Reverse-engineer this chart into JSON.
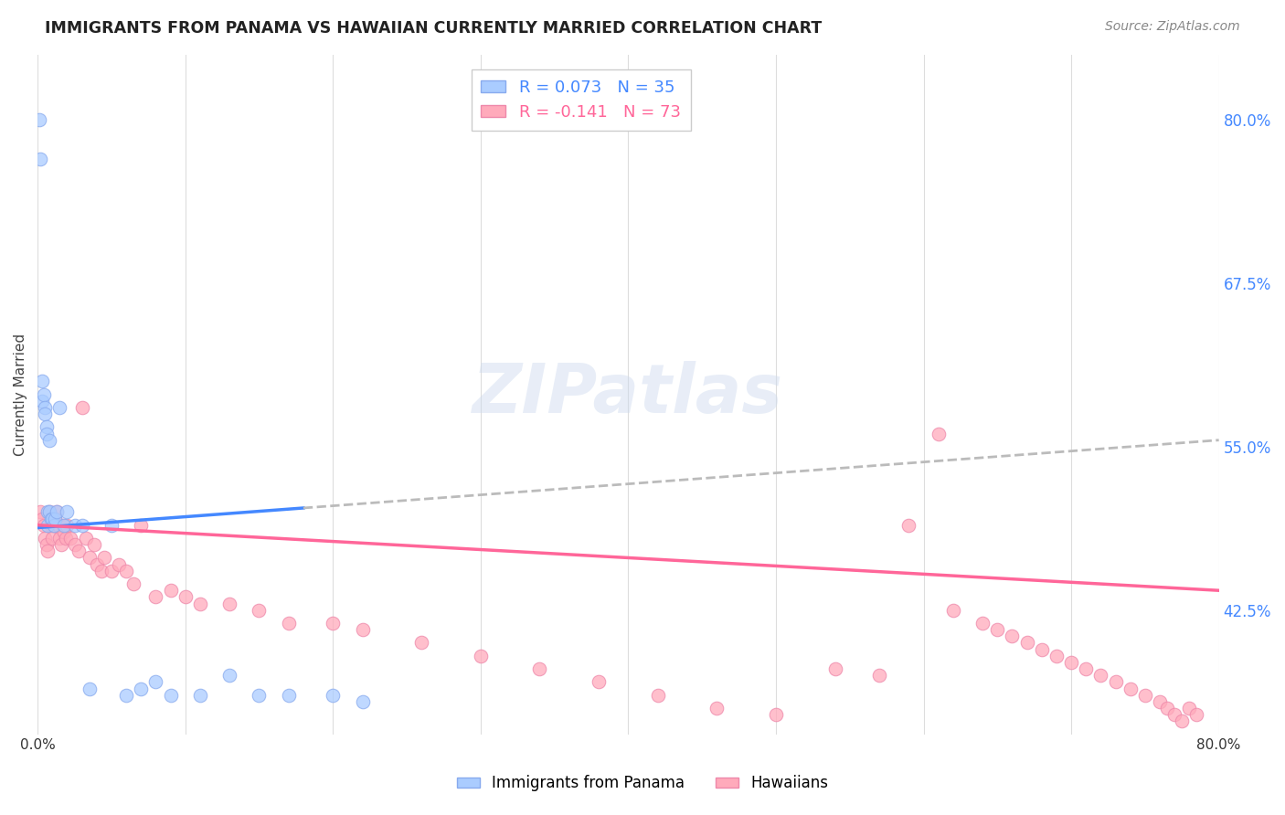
{
  "title": "IMMIGRANTS FROM PANAMA VS HAWAIIAN CURRENTLY MARRIED CORRELATION CHART",
  "source": "Source: ZipAtlas.com",
  "ylabel": "Currently Married",
  "watermark": "ZIPatlas",
  "right_ytick_labels": [
    "80.0%",
    "67.5%",
    "55.0%",
    "42.5%"
  ],
  "right_ytick_values": [
    0.8,
    0.675,
    0.55,
    0.425
  ],
  "series1_color": "#aaccff",
  "series2_color": "#ffaabb",
  "series1_edge_color": "#88aaee",
  "series2_edge_color": "#ee88aa",
  "trendline1_color": "#4488ff",
  "trendline2_color": "#ff6699",
  "dashed_line_color": "#bbbbbb",
  "legend1_label": "R = 0.073   N = 35",
  "legend2_label": "R = -0.141   N = 73",
  "legend1_text_color": "#4488ff",
  "legend2_text_color": "#ff6699",
  "bottom_legend1_label": "Immigrants from Panama",
  "bottom_legend2_label": "Hawaiians",
  "xmin": 0.0,
  "xmax": 0.8,
  "ymin": 0.33,
  "ymax": 0.85,
  "panama_x": [
    0.001,
    0.002,
    0.003,
    0.003,
    0.004,
    0.005,
    0.005,
    0.006,
    0.006,
    0.007,
    0.007,
    0.008,
    0.008,
    0.009,
    0.01,
    0.011,
    0.012,
    0.013,
    0.015,
    0.018,
    0.02,
    0.025,
    0.03,
    0.035,
    0.05,
    0.06,
    0.07,
    0.08,
    0.09,
    0.11,
    0.13,
    0.15,
    0.17,
    0.2,
    0.22
  ],
  "panama_y": [
    0.8,
    0.77,
    0.6,
    0.585,
    0.59,
    0.58,
    0.575,
    0.565,
    0.56,
    0.5,
    0.49,
    0.555,
    0.5,
    0.495,
    0.495,
    0.49,
    0.495,
    0.5,
    0.58,
    0.49,
    0.5,
    0.49,
    0.49,
    0.365,
    0.49,
    0.36,
    0.365,
    0.37,
    0.36,
    0.36,
    0.375,
    0.36,
    0.36,
    0.36,
    0.355
  ],
  "hawaii_x": [
    0.002,
    0.003,
    0.004,
    0.005,
    0.006,
    0.007,
    0.008,
    0.009,
    0.01,
    0.011,
    0.012,
    0.013,
    0.014,
    0.015,
    0.016,
    0.017,
    0.018,
    0.019,
    0.02,
    0.022,
    0.025,
    0.028,
    0.03,
    0.033,
    0.035,
    0.038,
    0.04,
    0.043,
    0.045,
    0.05,
    0.055,
    0.06,
    0.065,
    0.07,
    0.08,
    0.09,
    0.1,
    0.11,
    0.13,
    0.15,
    0.17,
    0.2,
    0.22,
    0.26,
    0.3,
    0.34,
    0.38,
    0.42,
    0.46,
    0.5,
    0.54,
    0.57,
    0.59,
    0.61,
    0.62,
    0.64,
    0.65,
    0.66,
    0.67,
    0.68,
    0.69,
    0.7,
    0.71,
    0.72,
    0.73,
    0.74,
    0.75,
    0.76,
    0.765,
    0.77,
    0.775,
    0.78,
    0.785
  ],
  "hawaii_y": [
    0.5,
    0.495,
    0.49,
    0.48,
    0.475,
    0.47,
    0.5,
    0.49,
    0.48,
    0.49,
    0.495,
    0.5,
    0.49,
    0.48,
    0.475,
    0.49,
    0.485,
    0.48,
    0.49,
    0.48,
    0.475,
    0.47,
    0.58,
    0.48,
    0.465,
    0.475,
    0.46,
    0.455,
    0.465,
    0.455,
    0.46,
    0.455,
    0.445,
    0.49,
    0.435,
    0.44,
    0.435,
    0.43,
    0.43,
    0.425,
    0.415,
    0.415,
    0.41,
    0.4,
    0.39,
    0.38,
    0.37,
    0.36,
    0.35,
    0.345,
    0.38,
    0.375,
    0.49,
    0.56,
    0.425,
    0.415,
    0.41,
    0.405,
    0.4,
    0.395,
    0.39,
    0.385,
    0.38,
    0.375,
    0.37,
    0.365,
    0.36,
    0.355,
    0.35,
    0.345,
    0.34,
    0.35,
    0.345
  ],
  "trend1_x0": 0.0,
  "trend1_x1": 0.8,
  "trend1_y0": 0.488,
  "trend1_y1": 0.555,
  "trend1_solid_end": 0.18,
  "trend2_x0": 0.0,
  "trend2_x1": 0.8,
  "trend2_y0": 0.49,
  "trend2_y1": 0.44
}
